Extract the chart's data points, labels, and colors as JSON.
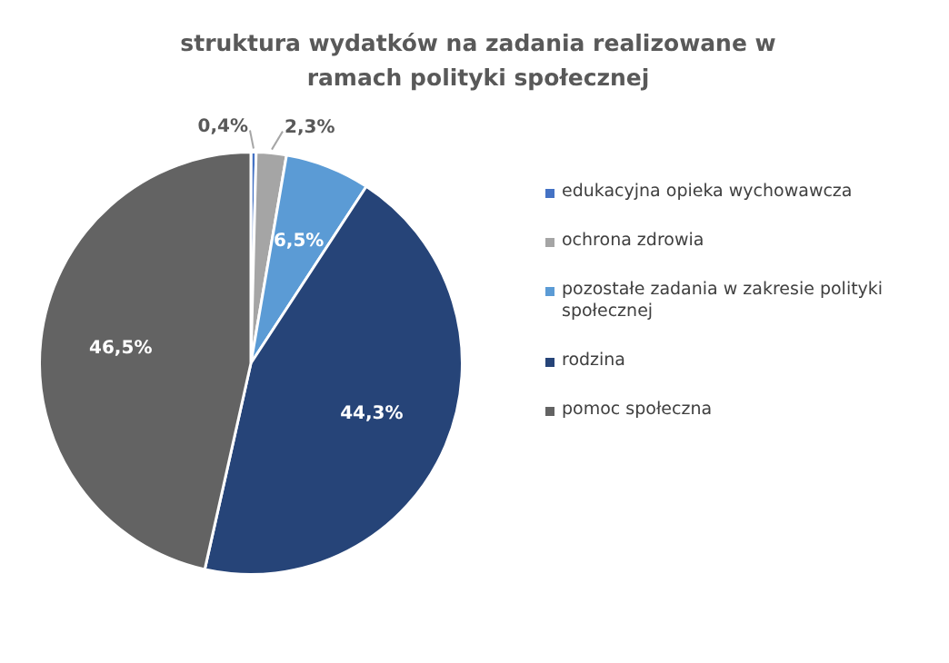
{
  "chart_data": {
    "type": "pie",
    "title": "struktura wydatków na zadania realizowane w ramach polityki społecznej",
    "categories": [
      "edukacyjna opieka wychowawcza",
      "ochrona zdrowia",
      "pozostałe zadania w zakresie polityki społecznej",
      "rodzina",
      "pomoc społeczna"
    ],
    "values": [
      0.4,
      2.3,
      6.5,
      44.3,
      46.5
    ],
    "colors": [
      "#4472c4",
      "#a5a5a5",
      "#5b9bd5",
      "#264478",
      "#636363"
    ],
    "value_labels": [
      "0,4%",
      "2,3%",
      "6,5%",
      "44,3%",
      "46,5%"
    ],
    "legend": "right"
  }
}
